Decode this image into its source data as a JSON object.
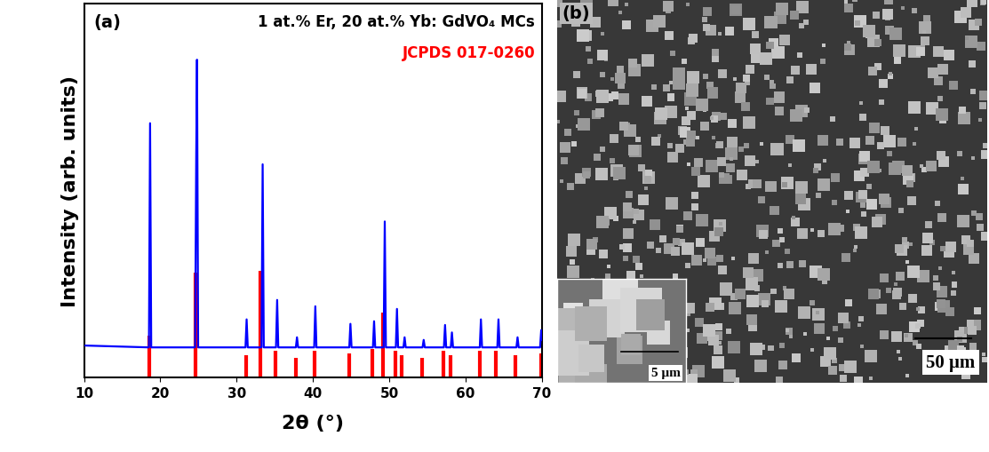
{
  "chart_data": [
    {
      "type": "line",
      "annotations": [
        "(a)"
      ],
      "x_label": "2θ (°)",
      "y_label": "Intensity (arb. units)",
      "xlim": [
        10,
        70
      ],
      "xticks": [
        10,
        20,
        30,
        40,
        50,
        60,
        70
      ],
      "ylim": [
        0,
        100
      ],
      "yticks": [],
      "tick_labels": "x",
      "series": [
        {
          "name": "1 at.% Er, 20 at.% Yb: GdVO₄ MCs",
          "type": "line",
          "color": "#0000ff",
          "x": [
            10,
            18.5,
            18.65,
            18.8,
            24.55,
            24.7,
            24.8,
            24.95,
            31.15,
            31.3,
            31.45,
            33.25,
            33.4,
            33.55,
            35.15,
            35.3,
            35.45,
            37.75,
            37.9,
            38.05,
            40.15,
            40.3,
            40.45,
            44.75,
            44.9,
            45.05,
            47.85,
            48.0,
            48.15,
            49.25,
            49.4,
            49.55,
            50.85,
            51.0,
            51.15,
            51.85,
            52.0,
            52.15,
            54.35,
            54.5,
            54.65,
            57.15,
            57.3,
            57.45,
            58.05,
            58.2,
            58.35,
            61.85,
            62.0,
            62.15,
            64.15,
            64.3,
            64.45,
            66.65,
            66.8,
            66.95,
            69.75,
            69.9,
            70
          ],
          "values": [
            8.5,
            8,
            68,
            8,
            8,
            60,
            85,
            8,
            8,
            15.5,
            8,
            8,
            57,
            8,
            8,
            20.7,
            8,
            8,
            10.7,
            8,
            8,
            19,
            8,
            8,
            14.3,
            8,
            8,
            15,
            8,
            8,
            41.7,
            8,
            8,
            18.3,
            8,
            8,
            10.7,
            8,
            8,
            10,
            8,
            8,
            14,
            8,
            8,
            12,
            8,
            8,
            15.5,
            8,
            8,
            15.5,
            8,
            8,
            10.7,
            8,
            8,
            12.6,
            10
          ]
        },
        {
          "name": "JCPDS 017-0260",
          "type": "stem",
          "color": "#ff0000",
          "x": [
            18.6,
            24.6,
            31.2,
            33.1,
            35.1,
            37.8,
            40.2,
            44.8,
            47.8,
            49.2,
            50.8,
            51.6,
            54.3,
            57.1,
            58.0,
            61.9,
            64.0,
            66.5,
            69.9
          ],
          "values": [
            11.2,
            27.9,
            6,
            28.6,
            7.1,
            5.2,
            7.1,
            6.4,
            7.6,
            17.4,
            7,
            6,
            5.2,
            7,
            6,
            7,
            7,
            6,
            6.4
          ]
        }
      ]
    },
    {
      "type": "image",
      "annotations": [
        "(b)",
        "50 μm",
        "5 μm"
      ]
    }
  ]
}
